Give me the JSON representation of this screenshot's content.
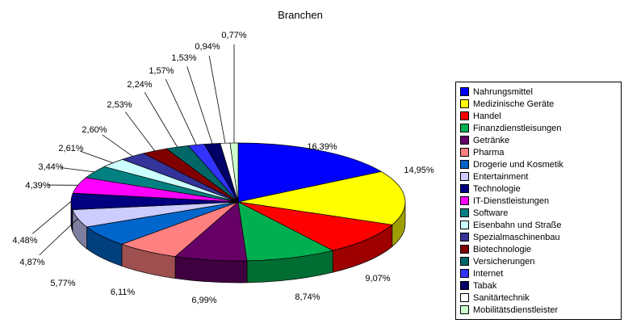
{
  "title": "Branchen",
  "chart_data": {
    "type": "pie",
    "variant": "3d",
    "title": "Branchen",
    "legend_position": "right",
    "categories": [
      "Nahrungsmittel",
      "Medizinische Geräte",
      "Handel",
      "Finanzdienstleisungen",
      "Getränke",
      "Pharma",
      "Drogerie und Kosmetik",
      "Entertainment",
      "Technologie",
      "IT-Dienstleistungen",
      "Software",
      "Eisenbahn und Straße",
      "Spezialmaschinenbau",
      "Biotechnologie",
      "Versicherungen",
      "Internet",
      "Tabak",
      "Sanitärtechnik",
      "Mobilitätsdienstleister"
    ],
    "values": [
      16.39,
      14.95,
      9.07,
      8.74,
      6.99,
      6.11,
      5.77,
      4.87,
      4.48,
      4.39,
      3.44,
      2.61,
      2.6,
      2.53,
      2.24,
      1.57,
      1.53,
      0.94,
      0.77
    ],
    "labels": [
      "16,39%",
      "14,95%",
      "9,07%",
      "8,74%",
      "6,99%",
      "6,11%",
      "5,77%",
      "4,87%",
      "4,48%",
      "4,39%",
      "3,44%",
      "2,61%",
      "2,60%",
      "2,53%",
      "2,24%",
      "1,57%",
      "1,53%",
      "0,94%",
      "0,77%"
    ],
    "colors": [
      "#0000FF",
      "#FFFF00",
      "#FF0000",
      "#00B050",
      "#660066",
      "#FF8080",
      "#0066CC",
      "#CCCCFF",
      "#000080",
      "#FF00FF",
      "#008080",
      "#CCFFFF",
      "#333399",
      "#800000",
      "#006666",
      "#3333FF",
      "#000066",
      "#FFFFFF",
      "#CCFFCC"
    ]
  }
}
